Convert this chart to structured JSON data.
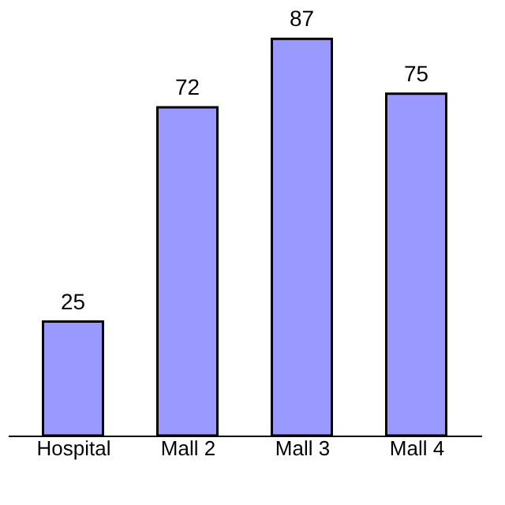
{
  "chart_data": {
    "type": "bar",
    "categories": [
      "Hospital",
      "Mall 2",
      "Mall 3",
      "Mall 4"
    ],
    "values": [
      25,
      72,
      87,
      75
    ],
    "color": "#9999ff",
    "data_labels": true
  }
}
